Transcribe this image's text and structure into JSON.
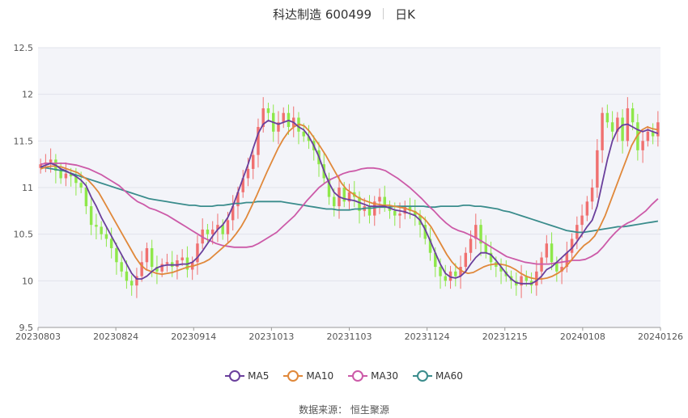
{
  "header": {
    "stock": "科达制造 600499",
    "period": "日K"
  },
  "source": "数据来源： 恒生聚源",
  "colors": {
    "up": "#f07070",
    "down": "#8ee84a",
    "ma5": "#6a3f9c",
    "ma10": "#e0883a",
    "ma30": "#cc5aa8",
    "ma60": "#3a8c8c"
  },
  "chart_data": {
    "type": "candlestick",
    "title": "科达制造 600499",
    "ylim": [
      9.5,
      12.5
    ],
    "yticks": [
      "9.5",
      "10",
      "10.5",
      "11",
      "11.5",
      "12",
      "12.5"
    ],
    "xticks": [
      "20230803",
      "20230824",
      "20230914",
      "20231013",
      "20231103",
      "20231124",
      "20231215",
      "20240108",
      "20240126"
    ],
    "legend": [
      "MA5",
      "MA10",
      "MA30",
      "MA60"
    ],
    "legend_position": "bottom",
    "grid": true,
    "close": [
      11.25,
      11.27,
      11.3,
      11.18,
      11.1,
      11.15,
      11.12,
      11.05,
      11.0,
      10.8,
      10.6,
      10.58,
      10.5,
      10.45,
      10.35,
      10.2,
      10.1,
      10.0,
      9.95,
      10.05,
      10.2,
      10.35,
      10.15,
      10.1,
      10.18,
      10.2,
      10.15,
      10.22,
      10.25,
      10.12,
      10.2,
      10.4,
      10.55,
      10.5,
      10.55,
      10.6,
      10.5,
      10.65,
      10.8,
      10.95,
      11.1,
      11.2,
      11.35,
      11.65,
      11.85,
      11.8,
      11.6,
      11.7,
      11.8,
      11.65,
      11.75,
      11.6,
      11.55,
      11.5,
      11.4,
      11.25,
      11.1,
      10.9,
      10.8,
      11.0,
      10.85,
      10.95,
      10.9,
      10.75,
      10.8,
      10.7,
      10.85,
      10.9,
      10.8,
      10.75,
      10.7,
      10.72,
      10.8,
      10.75,
      10.7,
      10.6,
      10.45,
      10.3,
      10.15,
      10.05,
      10.0,
      10.1,
      10.05,
      10.15,
      10.3,
      10.45,
      10.6,
      10.4,
      10.3,
      10.2,
      10.15,
      10.1,
      10.05,
      10.0,
      9.95,
      10.05,
      10.0,
      9.95,
      10.1,
      10.25,
      10.4,
      10.2,
      10.1,
      10.15,
      10.3,
      10.45,
      10.6,
      10.7,
      10.85,
      11.0,
      11.4,
      11.8,
      11.7,
      11.6,
      11.75,
      11.5,
      11.85,
      11.7,
      11.4,
      11.5,
      11.6,
      11.55,
      11.7
    ],
    "ma5": [
      11.22,
      11.24,
      11.26,
      11.24,
      11.2,
      11.18,
      11.15,
      11.12,
      11.08,
      11.02,
      10.9,
      10.8,
      10.68,
      10.58,
      10.48,
      10.38,
      10.28,
      10.18,
      10.08,
      10.02,
      10.02,
      10.05,
      10.1,
      10.14,
      10.16,
      10.17,
      10.17,
      10.17,
      10.18,
      10.18,
      10.2,
      10.25,
      10.32,
      10.4,
      10.48,
      10.55,
      10.6,
      10.68,
      10.8,
      10.95,
      11.1,
      11.25,
      11.42,
      11.58,
      11.68,
      11.72,
      11.7,
      11.68,
      11.7,
      11.72,
      11.7,
      11.65,
      11.62,
      11.55,
      11.45,
      11.33,
      11.18,
      11.05,
      10.95,
      10.9,
      10.88,
      10.87,
      10.86,
      10.84,
      10.82,
      10.8,
      10.8,
      10.8,
      10.8,
      10.78,
      10.76,
      10.75,
      10.74,
      10.72,
      10.7,
      10.65,
      10.55,
      10.43,
      10.3,
      10.18,
      10.08,
      10.04,
      10.03,
      10.05,
      10.1,
      10.18,
      10.25,
      10.3,
      10.3,
      10.28,
      10.22,
      10.15,
      10.08,
      10.02,
      9.98,
      9.97,
      9.97,
      9.97,
      10.0,
      10.05,
      10.12,
      10.15,
      10.2,
      10.25,
      10.3,
      10.35,
      10.42,
      10.5,
      10.58,
      10.65,
      10.8,
      11.05,
      11.3,
      11.5,
      11.62,
      11.67,
      11.68,
      11.65,
      11.62,
      11.6,
      11.62,
      11.6,
      11.58
    ],
    "ma10": [
      11.2,
      11.22,
      11.23,
      11.23,
      11.22,
      11.2,
      11.18,
      11.16,
      11.12,
      11.08,
      11.02,
      10.95,
      10.85,
      10.75,
      10.65,
      10.55,
      10.45,
      10.35,
      10.25,
      10.17,
      10.12,
      10.1,
      10.08,
      10.07,
      10.08,
      10.09,
      10.11,
      10.13,
      10.15,
      10.16,
      10.18,
      10.2,
      10.23,
      10.28,
      10.33,
      10.38,
      10.43,
      10.5,
      10.58,
      10.68,
      10.8,
      10.92,
      11.05,
      11.18,
      11.3,
      11.42,
      11.52,
      11.6,
      11.65,
      11.68,
      11.66,
      11.6,
      11.52,
      11.44,
      11.35,
      11.25,
      11.15,
      11.05,
      10.98,
      10.94,
      10.9,
      10.87,
      10.85,
      10.83,
      10.82,
      10.81,
      10.81,
      10.8,
      10.79,
      10.78,
      10.76,
      10.74,
      10.7,
      10.65,
      10.58,
      10.48,
      10.38,
      10.28,
      10.2,
      10.14,
      10.1,
      10.08,
      10.09,
      10.12,
      10.15,
      10.17,
      10.18,
      10.18,
      10.17,
      10.15,
      10.12,
      10.08,
      10.05,
      10.03,
      10.02,
      10.02,
      10.03,
      10.05,
      10.08,
      10.12,
      10.18,
      10.25,
      10.32,
      10.38,
      10.42,
      10.48,
      10.58,
      10.7,
      10.85,
      11.0,
      11.15,
      11.3,
      11.45,
      11.55,
      11.62,
      11.65,
      11.63,
      11.62
    ],
    "ma30": [
      11.25,
      11.26,
      11.26,
      11.26,
      11.26,
      11.25,
      11.24,
      11.22,
      11.2,
      11.17,
      11.14,
      11.1,
      11.06,
      11.02,
      10.96,
      10.9,
      10.85,
      10.82,
      10.78,
      10.76,
      10.73,
      10.7,
      10.66,
      10.62,
      10.58,
      10.54,
      10.5,
      10.46,
      10.43,
      10.4,
      10.38,
      10.37,
      10.36,
      10.36,
      10.36,
      10.37,
      10.4,
      10.44,
      10.48,
      10.52,
      10.58,
      10.64,
      10.7,
      10.78,
      10.86,
      10.93,
      11.0,
      11.05,
      11.09,
      11.12,
      11.15,
      11.17,
      11.18,
      11.2,
      11.21,
      11.21,
      11.2,
      11.18,
      11.14,
      11.1,
      11.05,
      11.0,
      10.94,
      10.88,
      10.81,
      10.75,
      10.68,
      10.62,
      10.57,
      10.54,
      10.52,
      10.49,
      10.46,
      10.42,
      10.38,
      10.34,
      10.3,
      10.26,
      10.24,
      10.22,
      10.2,
      10.19,
      10.18,
      10.18,
      10.18,
      10.19,
      10.2,
      10.21,
      10.22,
      10.22,
      10.23,
      10.26,
      10.3,
      10.37,
      10.45,
      10.52,
      10.58,
      10.62,
      10.65,
      10.7,
      10.75,
      10.82,
      10.88
    ],
    "ma60": [
      11.22,
      11.21,
      11.2,
      11.19,
      11.18,
      11.16,
      11.14,
      11.12,
      11.1,
      11.08,
      11.06,
      11.04,
      11.02,
      11.0,
      10.98,
      10.96,
      10.94,
      10.92,
      10.9,
      10.88,
      10.87,
      10.86,
      10.85,
      10.84,
      10.83,
      10.82,
      10.81,
      10.81,
      10.8,
      10.8,
      10.8,
      10.81,
      10.81,
      10.82,
      10.83,
      10.83,
      10.84,
      10.84,
      10.85,
      10.85,
      10.85,
      10.85,
      10.85,
      10.84,
      10.83,
      10.82,
      10.81,
      10.8,
      10.79,
      10.78,
      10.77,
      10.77,
      10.76,
      10.76,
      10.76,
      10.77,
      10.77,
      10.78,
      10.78,
      10.79,
      10.79,
      10.79,
      10.8,
      10.8,
      10.8,
      10.8,
      10.8,
      10.8,
      10.79,
      10.79,
      10.8,
      10.8,
      10.8,
      10.8,
      10.81,
      10.81,
      10.8,
      10.8,
      10.79,
      10.78,
      10.77,
      10.75,
      10.74,
      10.72,
      10.7,
      10.68,
      10.66,
      10.64,
      10.62,
      10.6,
      10.58,
      10.56,
      10.54,
      10.53,
      10.52,
      10.52,
      10.53,
      10.54,
      10.55,
      10.56,
      10.57,
      10.58,
      10.58,
      10.59,
      10.6,
      10.61,
      10.62,
      10.63,
      10.64
    ]
  }
}
